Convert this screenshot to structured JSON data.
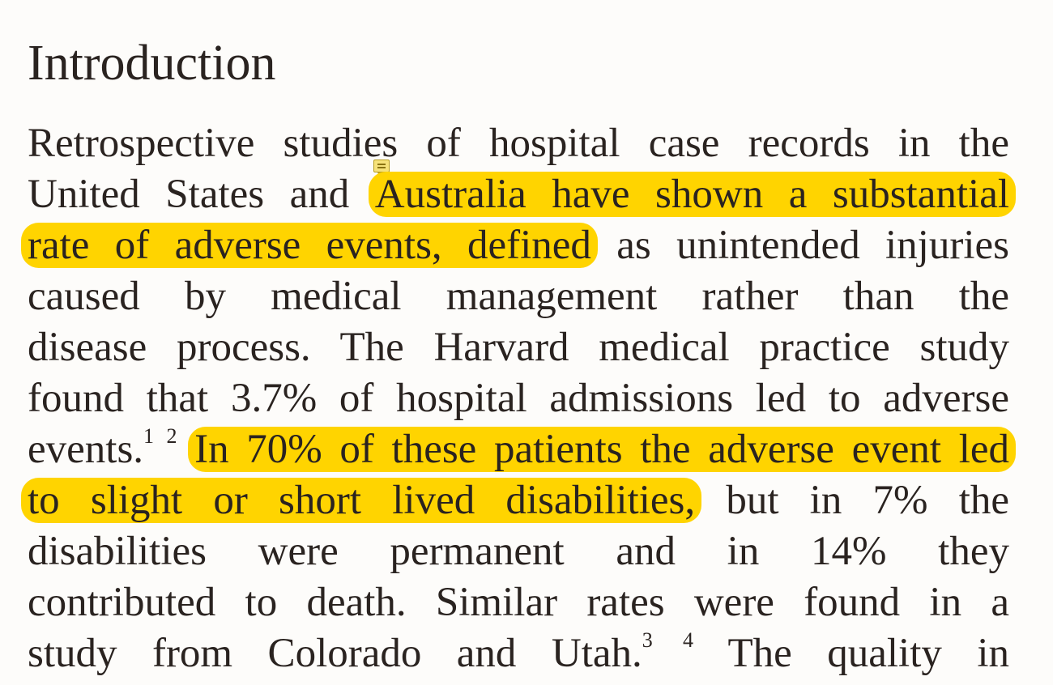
{
  "document": {
    "heading": "Introduction",
    "paragraph": {
      "l1": "Retrospective studies of hospital case records in the",
      "l2_pre": "United States and ",
      "l2_hl": "Australia have shown a substantial",
      "l3_hl": "rate of adverse events, defined",
      "l3_post": " as unintended injuries",
      "l4": "caused by medical management rather than the",
      "l5": "disease process. The Harvard medical practice study",
      "l6": "found that 3.7% of hospital admissions led to adverse",
      "l7_pre": "events.",
      "l7_ref1": "1 2",
      "l7_hl": "In 70% of these patients the adverse event led",
      "l8_hl": "to slight or short lived disabilities,",
      "l8_post": " but in 7% the",
      "l9": "disabilities were permanent and in 14% they",
      "l10": "contributed to death. Similar rates were found in a",
      "l11_pre": "study from Colorado and Utah.",
      "l11_ref2": "3 4",
      "l11_post": " The quality in"
    },
    "annotation_icon": "comment-note-icon",
    "highlight_color": "#ffd400"
  }
}
